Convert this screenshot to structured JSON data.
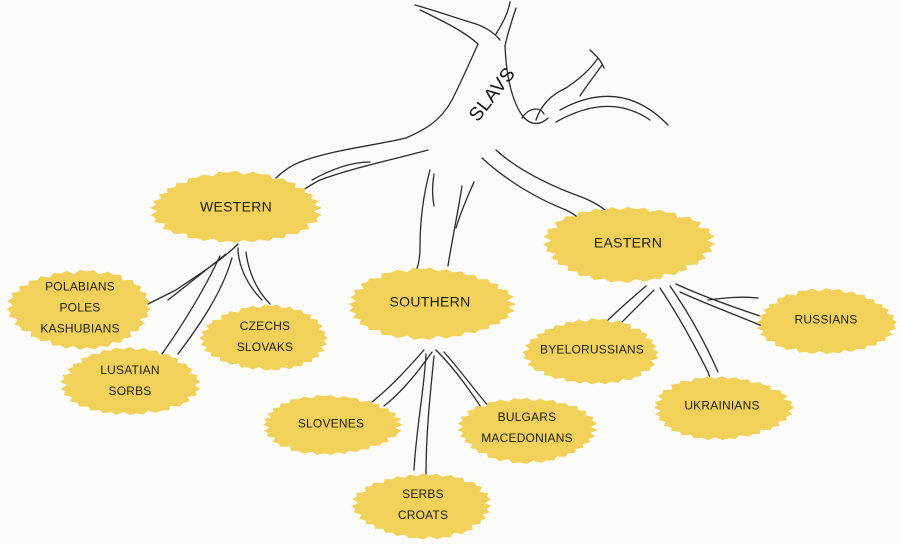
{
  "colors": {
    "blob_fill": "#f2d15a",
    "branch_stroke": "#2b2b2b",
    "text": "#1b1b1b",
    "background": "#fbfbf9"
  },
  "diagram": {
    "root": {
      "label": "SLAVS"
    },
    "groups": [
      {
        "name": "WESTERN",
        "children": [
          {
            "lines": [
              "POLABIANS",
              "POLES",
              "KASHUBIANS"
            ]
          },
          {
            "lines": [
              "CZECHS",
              "SLOVAKS"
            ]
          },
          {
            "lines": [
              "LUSATIAN",
              "SORBS"
            ]
          }
        ]
      },
      {
        "name": "SOUTHERN",
        "children": [
          {
            "lines": [
              "SLOVENES"
            ]
          },
          {
            "lines": [
              "BULGARS",
              "MACEDONIANS"
            ]
          },
          {
            "lines": [
              "SERBS",
              "CROATS"
            ]
          }
        ]
      },
      {
        "name": "EASTERN",
        "children": [
          {
            "lines": [
              "BYELORUSSIANS"
            ]
          },
          {
            "lines": [
              "RUSSIANS"
            ]
          },
          {
            "lines": [
              "UKRAINIANS"
            ]
          }
        ]
      }
    ]
  }
}
